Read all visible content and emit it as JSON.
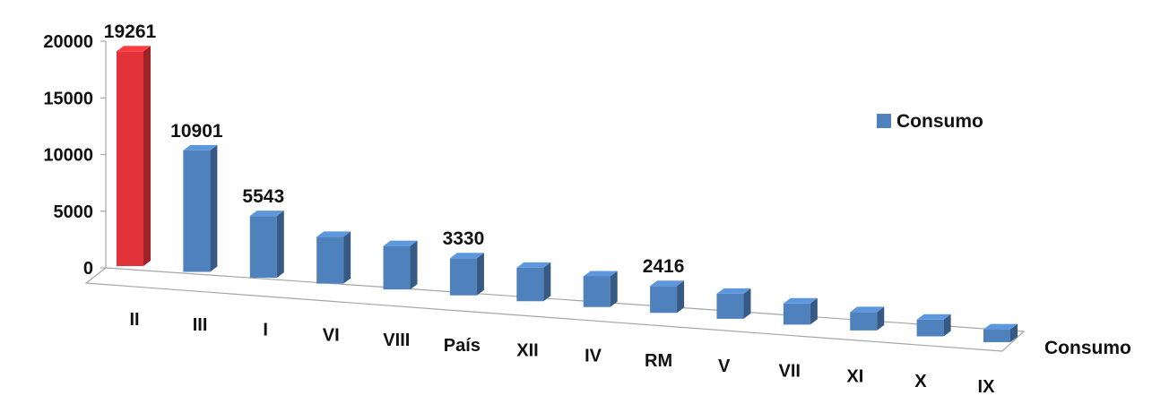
{
  "chart_data": {
    "type": "bar",
    "categories": [
      "II",
      "III",
      "I",
      "VI",
      "VIII",
      "País",
      "XII",
      "IV",
      "RM",
      "V",
      "VII",
      "XI",
      "X",
      "IX"
    ],
    "series": [
      {
        "name": "Consumo",
        "values": [
          19261,
          10901,
          5543,
          4200,
          3900,
          3330,
          3000,
          2750,
          2416,
          2250,
          1900,
          1650,
          1500,
          1150
        ]
      }
    ],
    "data_labels": [
      "19261",
      "10901",
      "5543",
      "",
      "",
      "3330",
      "",
      "",
      "2416",
      "",
      "",
      "",
      "",
      ""
    ],
    "highlight_index": 0,
    "colors": {
      "default_bar": "#4f81bd",
      "highlight_bar": "#e2323a"
    },
    "y_ticks": [
      "0",
      "5000",
      "10000",
      "15000",
      "20000"
    ],
    "ylim": [
      0,
      20000
    ],
    "depth_axis_label": "Consumo",
    "legend": {
      "label": "Consumo",
      "position": "right"
    },
    "title": "",
    "xlabel": "",
    "ylabel": ""
  }
}
